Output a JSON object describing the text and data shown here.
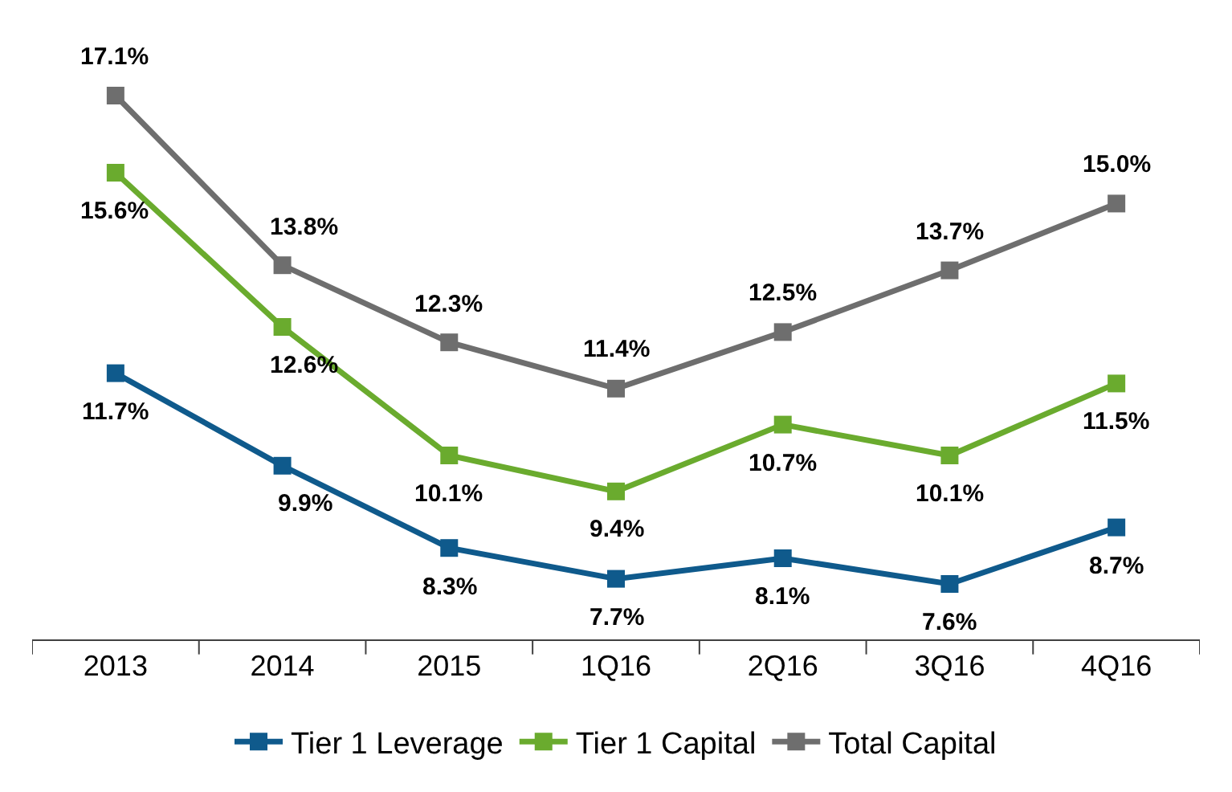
{
  "chart_data": {
    "type": "line",
    "categories": [
      "2013",
      "2014",
      "2015",
      "1Q16",
      "2Q16",
      "3Q16",
      "4Q16"
    ],
    "series": [
      {
        "name": "Tier 1 Leverage",
        "color": "#0f5a8c",
        "values": [
          11.7,
          9.9,
          8.3,
          7.7,
          8.1,
          7.6,
          8.7
        ],
        "value_labels": [
          "11.7%",
          "9.9%",
          "8.3%",
          "7.7%",
          "8.1%",
          "7.6%",
          "8.7%"
        ]
      },
      {
        "name": "Tier 1 Capital",
        "color": "#6aab2e",
        "values": [
          15.6,
          12.6,
          10.1,
          9.4,
          10.7,
          10.1,
          11.5
        ],
        "value_labels": [
          "15.6%",
          "12.6%",
          "10.1%",
          "9.4%",
          "10.7%",
          "10.1%",
          "11.5%"
        ]
      },
      {
        "name": "Total Capital",
        "color": "#6e6e6e",
        "values": [
          17.1,
          13.8,
          12.3,
          11.4,
          12.5,
          13.7,
          15.0
        ],
        "value_labels": [
          "17.1%",
          "13.8%",
          "12.3%",
          "11.4%",
          "12.5%",
          "13.7%",
          "15.0%"
        ]
      }
    ],
    "marker": "square",
    "line_style": "solid",
    "legend": "bottom"
  }
}
